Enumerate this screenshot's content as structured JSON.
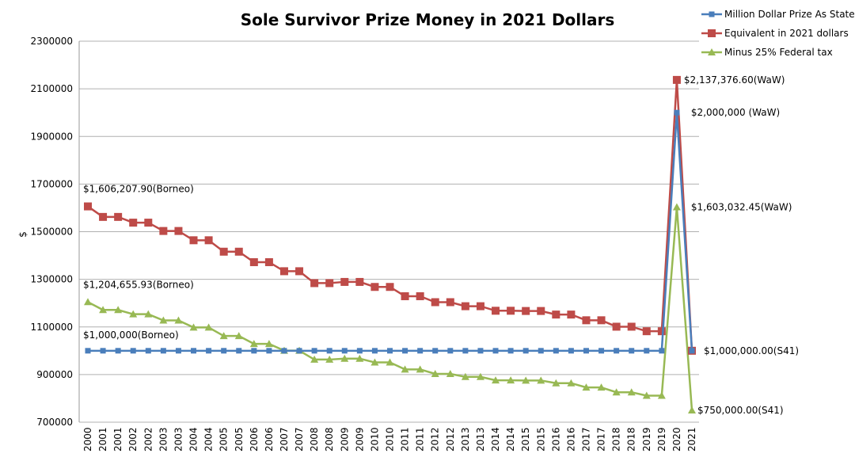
{
  "chart_data": {
    "type": "line",
    "title": "Sole Survivor Prize Money in 2021 Dollars",
    "xlabel": "",
    "ylabel": "$",
    "ylim": [
      700000,
      2300000
    ],
    "yticks": [
      "700000",
      "900000",
      "1100000",
      "1300000",
      "1500000",
      "1700000",
      "1900000",
      "2100000",
      "2300000"
    ],
    "grid": true,
    "legend_position": "top-right",
    "categories": [
      "2000",
      "2001",
      "2001",
      "2002",
      "2002",
      "2003",
      "2003",
      "2004",
      "2004",
      "2005",
      "2005",
      "2006",
      "2006",
      "2007",
      "2007",
      "2008",
      "2008",
      "2009",
      "2009",
      "2010",
      "2010",
      "2011",
      "2011",
      "2012",
      "2012",
      "2013",
      "2013",
      "2014",
      "2014",
      "2015",
      "2015",
      "2016",
      "2016",
      "2017",
      "2017",
      "2018",
      "2018",
      "2019",
      "2019",
      "2020",
      "2021"
    ],
    "series": [
      {
        "name": "Million Dollar Prize As Stated",
        "color": "#4a7ebb",
        "marker": "square-small",
        "values": [
          1000000,
          1000000,
          1000000,
          1000000,
          1000000,
          1000000,
          1000000,
          1000000,
          1000000,
          1000000,
          1000000,
          1000000,
          1000000,
          1000000,
          1000000,
          1000000,
          1000000,
          1000000,
          1000000,
          1000000,
          1000000,
          1000000,
          1000000,
          1000000,
          1000000,
          1000000,
          1000000,
          1000000,
          1000000,
          1000000,
          1000000,
          1000000,
          1000000,
          1000000,
          1000000,
          1000000,
          1000000,
          1000000,
          1000000,
          2000000,
          1000000
        ]
      },
      {
        "name": "Equivalent in 2021 dollars",
        "color": "#be4b48",
        "marker": "square",
        "values": [
          1606207.9,
          1562000,
          1562000,
          1538000,
          1538000,
          1503000,
          1503000,
          1464000,
          1464000,
          1416000,
          1416000,
          1372000,
          1372000,
          1334000,
          1334000,
          1284000,
          1284000,
          1289000,
          1289000,
          1268000,
          1268000,
          1229000,
          1229000,
          1204000,
          1204000,
          1187000,
          1187000,
          1168000,
          1168000,
          1167000,
          1167000,
          1152000,
          1152000,
          1128000,
          1128000,
          1101000,
          1101000,
          1082000,
          1082000,
          2137376.6,
          1000000
        ]
      },
      {
        "name": "Minus 25% Federal tax",
        "color": "#98b954",
        "marker": "triangle",
        "values": [
          1204655.93,
          1171500,
          1171500,
          1153500,
          1153500,
          1127250,
          1127250,
          1098000,
          1098000,
          1062000,
          1062000,
          1029000,
          1029000,
          1000500,
          1000500,
          963000,
          963000,
          966750,
          966750,
          951000,
          951000,
          921750,
          921750,
          903000,
          903000,
          890250,
          890250,
          876000,
          876000,
          875250,
          875250,
          864000,
          864000,
          846000,
          846000,
          825750,
          825750,
          811500,
          811500,
          1603032.45,
          750000
        ]
      }
    ],
    "annotations": [
      {
        "text": "$1,606,207.90(Borneo)",
        "series": 1,
        "index": 0
      },
      {
        "text": "$1,204,655.93(Borneo)",
        "series": 2,
        "index": 0
      },
      {
        "text": "$1,000,000(Borneo)",
        "series": 0,
        "index": 0
      },
      {
        "text": "$2,137,376.60(WaW)",
        "series": 1,
        "index": 39
      },
      {
        "text": "$2,000,000 (WaW)",
        "series": 0,
        "index": 39
      },
      {
        "text": "$1,603,032.45(WaW)",
        "series": 2,
        "index": 39
      },
      {
        "text": "$1,000,000.00(S41)",
        "series": 1,
        "index": 40
      },
      {
        "text": "$750,000.00(S41)",
        "series": 2,
        "index": 40
      }
    ]
  }
}
